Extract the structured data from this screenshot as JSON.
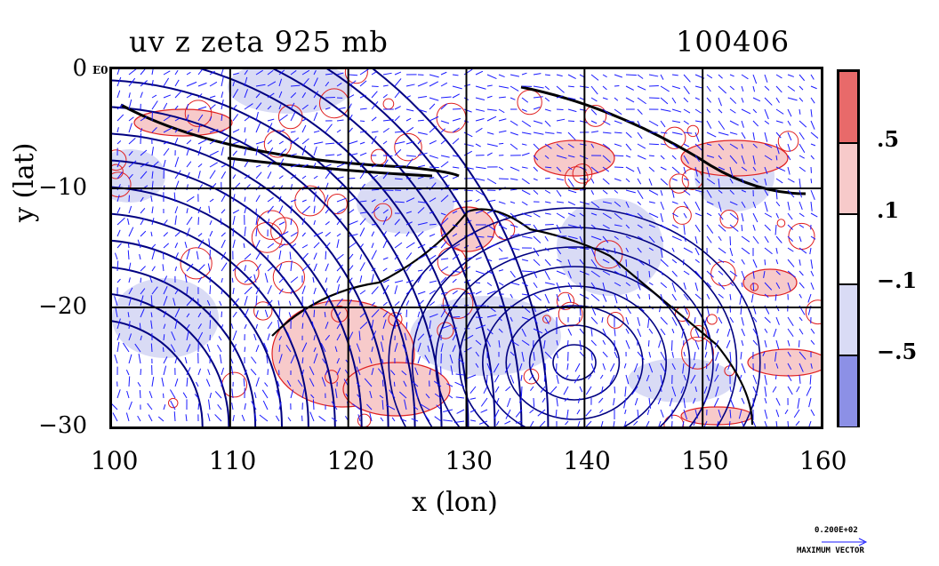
{
  "title_left": "uv z zeta 925 mb",
  "title_right": "100406",
  "corner_text": "E0",
  "chart_data": {
    "type": "heatmap",
    "xlabel": "x (lon)",
    "ylabel": "y (lat)",
    "xlim": [
      100,
      160
    ],
    "ylim": [
      -30,
      0
    ],
    "x_ticks": [
      "100",
      "110",
      "120",
      "130",
      "140",
      "150",
      "160"
    ],
    "y_ticks": [
      "0",
      "−10",
      "−20",
      "−30"
    ],
    "grid": true,
    "colorbar": {
      "levels": [
        ".5",
        ".1",
        "−.1",
        "−.5"
      ],
      "colors": [
        "#e86a6a",
        "#f7caca",
        "#ffffff",
        "#d9dbf5",
        "#8c90e6"
      ]
    },
    "overlays": [
      "wind vectors (blue)",
      "geopotential height contours (black)",
      "vorticity contours (red)"
    ]
  },
  "vector_legend": {
    "scale_value": "0.200E+02",
    "label": "MAXIMUM VECTOR"
  },
  "colors": {
    "vector": "#1a1aff",
    "positive": "#e02020",
    "negative_fill": "#d9dbf5",
    "contour": "#000000"
  }
}
